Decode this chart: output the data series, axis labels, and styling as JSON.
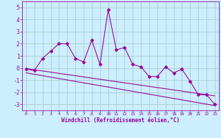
{
  "x": [
    0,
    1,
    2,
    3,
    4,
    5,
    6,
    7,
    8,
    9,
    10,
    11,
    12,
    13,
    14,
    15,
    16,
    17,
    18,
    19,
    20,
    21,
    22,
    23
  ],
  "y": [
    -0.1,
    -0.2,
    0.8,
    1.4,
    2.0,
    2.0,
    0.8,
    0.5,
    2.3,
    0.3,
    4.8,
    1.5,
    1.7,
    0.3,
    0.1,
    -0.7,
    -0.7,
    0.1,
    -0.4,
    -0.1,
    -1.1,
    -2.2,
    -2.2,
    -3.0
  ],
  "trend_x": [
    0,
    23
  ],
  "trend_y": [
    -0.05,
    -2.3
  ],
  "trend2_x": [
    0,
    23
  ],
  "trend2_y": [
    -0.4,
    -3.1
  ],
  "xlim": [
    -0.5,
    23.5
  ],
  "ylim": [
    -3.5,
    5.5
  ],
  "yticks": [
    -3,
    -2,
    -1,
    0,
    1,
    2,
    3,
    4,
    5
  ],
  "xticks": [
    0,
    1,
    2,
    3,
    4,
    5,
    6,
    7,
    8,
    9,
    10,
    11,
    12,
    13,
    14,
    15,
    16,
    17,
    18,
    19,
    20,
    21,
    22,
    23
  ],
  "xlabel": "Windchill (Refroidissement éolien,°C)",
  "line_color": "#990099",
  "bg_color": "#cceeff",
  "grid_color": "#aacccc",
  "axis_color": "#990099",
  "tick_color": "#990099",
  "label_color": "#990099",
  "marker": "D",
  "markersize": 2.5,
  "linewidth": 0.8
}
